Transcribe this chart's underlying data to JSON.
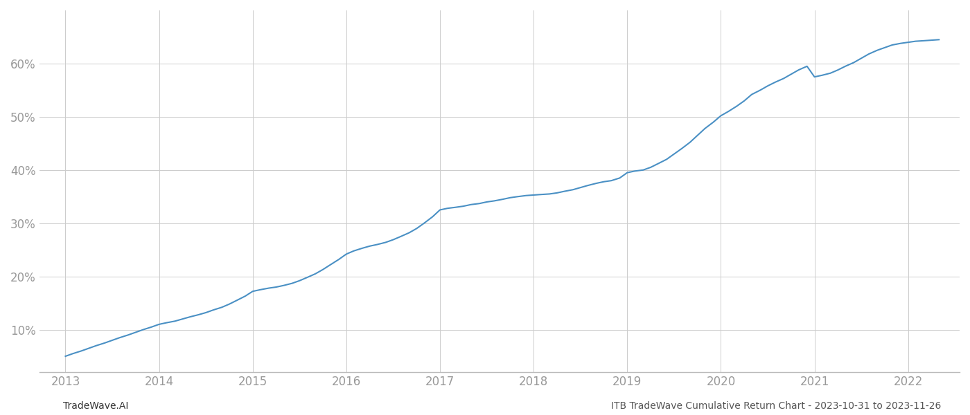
{
  "x_years": [
    2013.0,
    2013.08,
    2013.17,
    2013.25,
    2013.33,
    2013.42,
    2013.5,
    2013.58,
    2013.67,
    2013.75,
    2013.83,
    2013.92,
    2014.0,
    2014.08,
    2014.17,
    2014.25,
    2014.33,
    2014.42,
    2014.5,
    2014.58,
    2014.67,
    2014.75,
    2014.83,
    2014.92,
    2015.0,
    2015.08,
    2015.17,
    2015.25,
    2015.33,
    2015.42,
    2015.5,
    2015.58,
    2015.67,
    2015.75,
    2015.83,
    2015.92,
    2016.0,
    2016.08,
    2016.17,
    2016.25,
    2016.33,
    2016.42,
    2016.5,
    2016.58,
    2016.67,
    2016.75,
    2016.83,
    2016.92,
    2017.0,
    2017.08,
    2017.17,
    2017.25,
    2017.33,
    2017.42,
    2017.5,
    2017.58,
    2017.67,
    2017.75,
    2017.83,
    2017.92,
    2018.0,
    2018.08,
    2018.17,
    2018.25,
    2018.33,
    2018.42,
    2018.5,
    2018.58,
    2018.67,
    2018.75,
    2018.83,
    2018.92,
    2019.0,
    2019.08,
    2019.17,
    2019.25,
    2019.33,
    2019.42,
    2019.5,
    2019.58,
    2019.67,
    2019.75,
    2019.83,
    2019.92,
    2020.0,
    2020.08,
    2020.17,
    2020.25,
    2020.33,
    2020.42,
    2020.5,
    2020.58,
    2020.67,
    2020.75,
    2020.83,
    2020.92,
    2021.0,
    2021.08,
    2021.17,
    2021.25,
    2021.33,
    2021.42,
    2021.5,
    2021.58,
    2021.67,
    2021.75,
    2021.83,
    2021.92,
    2022.0,
    2022.08,
    2022.17,
    2022.25,
    2022.33
  ],
  "y_values": [
    5.0,
    5.5,
    6.0,
    6.5,
    7.0,
    7.5,
    8.0,
    8.5,
    9.0,
    9.5,
    10.0,
    10.5,
    11.0,
    11.3,
    11.6,
    12.0,
    12.4,
    12.8,
    13.2,
    13.7,
    14.2,
    14.8,
    15.5,
    16.3,
    17.2,
    17.5,
    17.8,
    18.0,
    18.3,
    18.7,
    19.2,
    19.8,
    20.5,
    21.3,
    22.2,
    23.2,
    24.2,
    24.8,
    25.3,
    25.7,
    26.0,
    26.4,
    26.9,
    27.5,
    28.2,
    29.0,
    30.0,
    31.2,
    32.5,
    32.8,
    33.0,
    33.2,
    33.5,
    33.7,
    34.0,
    34.2,
    34.5,
    34.8,
    35.0,
    35.2,
    35.3,
    35.4,
    35.5,
    35.7,
    36.0,
    36.3,
    36.7,
    37.1,
    37.5,
    37.8,
    38.0,
    38.5,
    39.5,
    39.8,
    40.0,
    40.5,
    41.2,
    42.0,
    43.0,
    44.0,
    45.2,
    46.5,
    47.8,
    49.0,
    50.2,
    51.0,
    52.0,
    53.0,
    54.2,
    55.0,
    55.8,
    56.5,
    57.2,
    58.0,
    58.8,
    59.5,
    57.5,
    57.8,
    58.2,
    58.8,
    59.5,
    60.2,
    61.0,
    61.8,
    62.5,
    63.0,
    63.5,
    63.8,
    64.0,
    64.2,
    64.3,
    64.4,
    64.5
  ],
  "line_color": "#4a90c4",
  "line_width": 1.5,
  "background_color": "#ffffff",
  "grid_color": "#cccccc",
  "yticks": [
    10,
    20,
    30,
    40,
    50,
    60
  ],
  "xticks": [
    2013,
    2014,
    2015,
    2016,
    2017,
    2018,
    2019,
    2020,
    2021,
    2022
  ],
  "xlim": [
    2012.72,
    2022.55
  ],
  "ylim": [
    2.0,
    70.0
  ],
  "footer_left": "TradeWave.AI",
  "footer_right": "ITB TradeWave Cumulative Return Chart - 2023-10-31 to 2023-11-26",
  "footer_fontsize": 10,
  "tick_fontsize": 12,
  "tick_color": "#999999",
  "axis_color": "#333333"
}
